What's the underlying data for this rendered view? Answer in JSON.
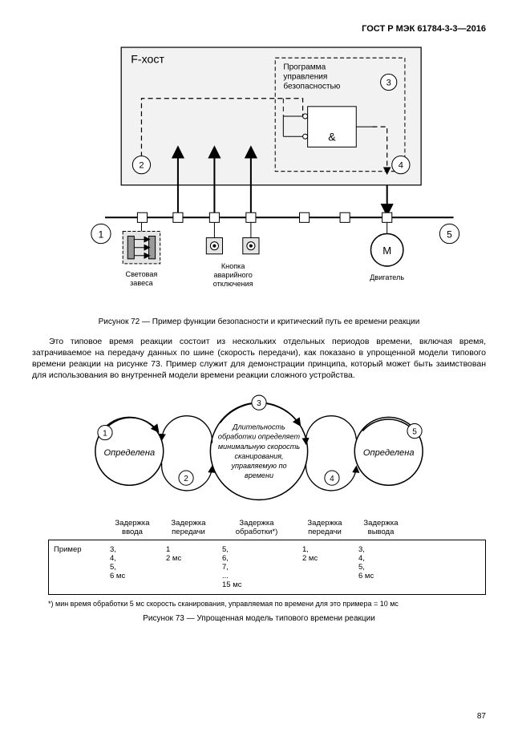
{
  "header": "ГОСТ Р МЭК 61784-3-3—2016",
  "pagenum": "87",
  "fig72": {
    "host_label": "F-хост",
    "prog_box_l1": "Программа",
    "prog_box_l2": "управления",
    "prog_box_l3": "безопасностью",
    "and_label": "&",
    "n1": "1",
    "n2": "2",
    "n3": "3",
    "n4": "4",
    "n5": "5",
    "dev1_l1": "Световая",
    "dev1_l2": "завеса",
    "dev2_l1": "Кнопка",
    "dev2_l2": "аварийного",
    "dev2_l3": "отключения",
    "motor_label": "М",
    "motor_caption": "Двигатель",
    "caption": "Рисунок 72 — Пример функции безопасности и критический путь ее времени реакции"
  },
  "paragraph": "Это типовое время реакции состоит из нескольких отдельных периодов времени, включая время, затрачиваемое на передачу данных по шине (скорость передачи), как показано в упрощенной модели типового времени реакции на рисунке 73. Пример служит для демонстрации принципа, который может быть заимствован для использования во внутренней модели времени реакции сложного устройства.",
  "fig73": {
    "left_label": "Определена",
    "right_label": "Определена",
    "center_l1": "Длительность",
    "center_l2": "обработки определяет",
    "center_l3": "минимальную скорость",
    "center_l4": "сканирования,",
    "center_l5": "управляемую по",
    "center_l6": "времени",
    "n1": "1",
    "n2": "2",
    "n3": "3",
    "n4": "4",
    "n5": "5",
    "delay_headers": {
      "c1": "",
      "c2": "Задержка\nввода",
      "c3": "Задержка\nпередачи",
      "c4": "Задержка\nобработки*)",
      "c5": "Задержка\nпередачи",
      "c6": "Задержка\nвывода"
    },
    "table": {
      "label": "Пример",
      "c2": "3,\n4,\n5,\n6 мс",
      "c3": "1\n2 мс",
      "c4": "5,\n6,\n7,\n...\n15 мс",
      "c5": "1,\n2 мс",
      "c6": "3,\n4,\n5,\n6 мс"
    },
    "footnote": "*) мин время обработки 5 мс скорость сканирования, управляемая по времени для это примера = 10 мс",
    "caption": "Рисунок 73 — Упрощенная модель типового времени реакции"
  }
}
